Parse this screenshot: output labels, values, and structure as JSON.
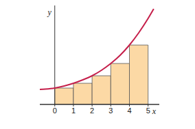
{
  "chart_data": {
    "type": "bar",
    "x_label": "x",
    "y_label": "y",
    "xlim": [
      -0.8,
      5.6
    ],
    "ylim": [
      0,
      14.5
    ],
    "xticks": [
      0,
      1,
      2,
      3,
      4,
      5
    ],
    "tick_labels": "x",
    "series": [
      {
        "type": "bar",
        "bins": [
          0,
          1,
          2,
          3,
          4,
          5
        ],
        "values": [
          2.4,
          3.1,
          4.2,
          6.0,
          8.7
        ],
        "color": "#fcd9a5"
      },
      {
        "type": "line",
        "x": [
          -0.8,
          -0.5,
          0,
          0.5,
          1,
          1.5,
          2,
          2.5,
          3,
          3.5,
          4,
          4.5,
          5,
          5.3
        ],
        "values": [
          2.2,
          2.25,
          2.4,
          2.7,
          3.1,
          3.6,
          4.2,
          5.0,
          6.0,
          7.2,
          8.7,
          10.5,
          12.6,
          14.0
        ],
        "color": "#c51f4a"
      }
    ]
  }
}
